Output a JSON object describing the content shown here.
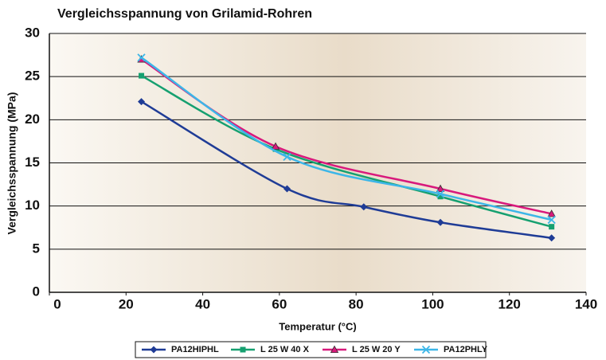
{
  "chart_data": {
    "type": "line",
    "title": "Vergleichsspannung von Grilamid-Rohren",
    "x_label": "Temperatur (°C)",
    "y_label": "Vergleichsspannung (MPa)",
    "xlim": [
      0,
      140
    ],
    "xticks": [
      0,
      20,
      40,
      60,
      80,
      100,
      120,
      140
    ],
    "ylim": [
      0,
      30
    ],
    "yticks": [
      0,
      5,
      10,
      15,
      20,
      25,
      30
    ],
    "grid": true,
    "legend": "bottom",
    "series": [
      {
        "name": "PA12HIPHL",
        "color": "#1f3c96",
        "marker": "diamond",
        "x": [
          24,
          62,
          82,
          102,
          131
        ],
        "values": [
          22.1,
          12,
          9.9,
          8.1,
          6.3
        ]
      },
      {
        "name": "L 25 W 40 X",
        "color": "#16a070",
        "marker": "square",
        "x": [
          24,
          59,
          102,
          131
        ],
        "values": [
          25.1,
          16.6,
          11.1,
          7.6
        ]
      },
      {
        "name": "L 25 W 20 Y",
        "color": "#d8197c",
        "marker": "triangle",
        "x": [
          24,
          59,
          102,
          131
        ],
        "values": [
          27,
          16.9,
          12,
          9.1
        ]
      },
      {
        "name": "PA12PHLY",
        "color": "#3cb6e8",
        "marker": "x",
        "x": [
          24,
          62,
          102,
          131
        ],
        "values": [
          27.2,
          15.7,
          11.4,
          8.4
        ]
      }
    ]
  }
}
